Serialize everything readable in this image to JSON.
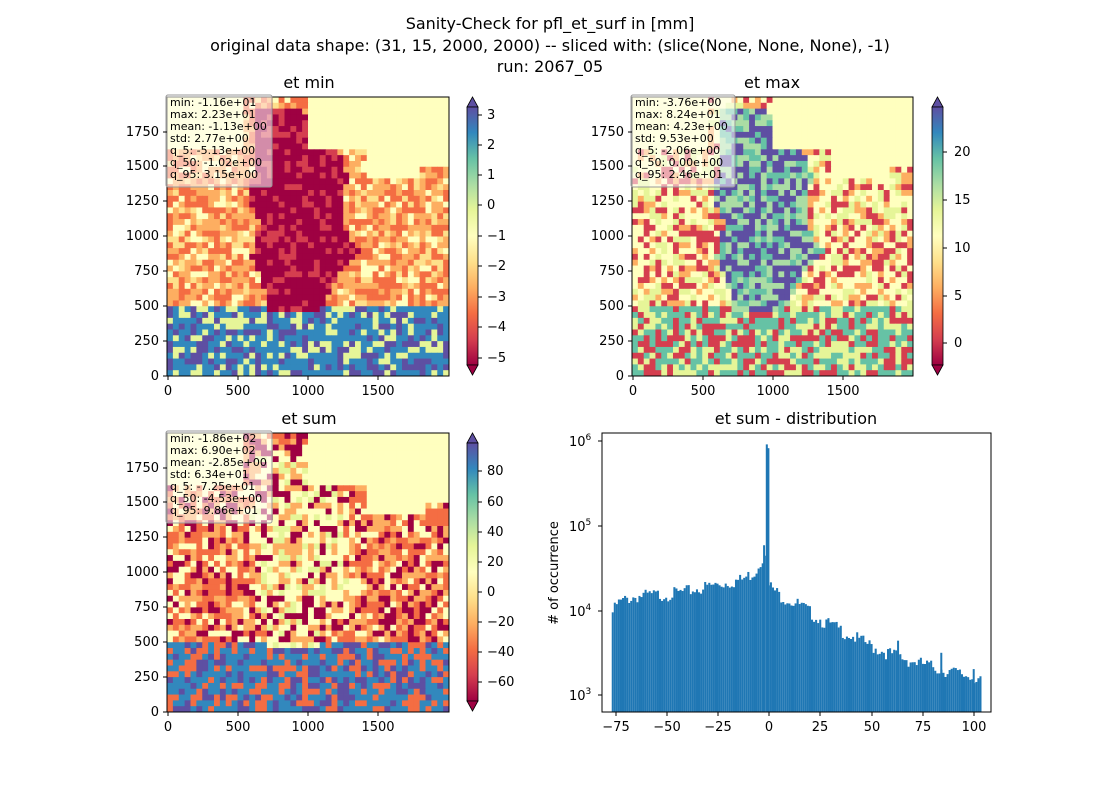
{
  "figure": {
    "title_lines": [
      "Sanity-Check for pfl_et_surf in [mm]",
      "original data shape: (31, 15, 2000, 2000) -- sliced with: (slice(None, None, None), -1)",
      "run: 2067_05"
    ]
  },
  "chart_data": [
    {
      "type": "heatmap",
      "title": "et min",
      "colormap": "Spectral",
      "colors_low_to_high": [
        "#9e0142",
        "#d53e4f",
        "#f46d43",
        "#fdae61",
        "#fee08b",
        "#ffffbf",
        "#e6f598",
        "#abdda4",
        "#66c2a5",
        "#3288bd",
        "#5e4fa2"
      ],
      "x_ticks": [
        "0",
        "500",
        "1000",
        "1500"
      ],
      "y_ticks": [
        "0",
        "250",
        "500",
        "750",
        "1000",
        "1250",
        "1500",
        "1750"
      ],
      "xlim": [
        0,
        2000
      ],
      "ylim": [
        0,
        2000
      ],
      "colorbar": {
        "ticks": [
          "3",
          "2",
          "1",
          "0",
          "−1",
          "−2",
          "−3",
          "−4",
          "−5"
        ],
        "range": [
          -5.13,
          3.15
        ],
        "extend": "both"
      },
      "stats": [
        "min: -1.16e+01",
        "max: 2.23e+01",
        "mean: -1.13e+00",
        "std: 2.77e+00",
        "q_5: -5.13e+00",
        "q_50: -1.02e+00",
        "q_95: 3.15e+00"
      ]
    },
    {
      "type": "heatmap",
      "title": "et max",
      "colormap": "Spectral",
      "colors_low_to_high": [
        "#9e0142",
        "#d53e4f",
        "#f46d43",
        "#fdae61",
        "#fee08b",
        "#ffffbf",
        "#e6f598",
        "#abdda4",
        "#66c2a5",
        "#3288bd",
        "#5e4fa2"
      ],
      "x_ticks": [
        "0",
        "500",
        "1000",
        "1500"
      ],
      "y_ticks": [
        "0",
        "250",
        "500",
        "750",
        "1000",
        "1250",
        "1500",
        "1750"
      ],
      "xlim": [
        0,
        2000
      ],
      "ylim": [
        0,
        2000
      ],
      "colorbar": {
        "ticks": [
          "20",
          "15",
          "10",
          "5",
          "0"
        ],
        "range": [
          -2.06,
          24.6
        ],
        "extend": "both"
      },
      "stats": [
        "min: -3.76e+00",
        "max: 8.24e+01",
        "mean: 4.23e+00",
        "std: 9.53e+00",
        "q_5: -2.06e+00",
        "q_50: 0.00e+00",
        "q_95: 2.46e+01"
      ]
    },
    {
      "type": "heatmap",
      "title": "et sum",
      "colormap": "Spectral",
      "colors_low_to_high": [
        "#9e0142",
        "#d53e4f",
        "#f46d43",
        "#fdae61",
        "#fee08b",
        "#ffffbf",
        "#e6f598",
        "#abdda4",
        "#66c2a5",
        "#3288bd",
        "#5e4fa2"
      ],
      "x_ticks": [
        "0",
        "500",
        "1000",
        "1500"
      ],
      "y_ticks": [
        "0",
        "250",
        "500",
        "750",
        "1000",
        "1250",
        "1500",
        "1750"
      ],
      "xlim": [
        0,
        2000
      ],
      "ylim": [
        0,
        2000
      ],
      "colorbar": {
        "ticks": [
          "80",
          "60",
          "40",
          "20",
          "0",
          "−20",
          "−40",
          "−60"
        ],
        "range": [
          -72.5,
          98.6
        ],
        "extend": "both"
      },
      "stats": [
        "min: -1.86e+02",
        "max: 6.90e+02",
        "mean: -2.85e+00",
        "std: 6.34e+01",
        "q_5: -7.25e+01",
        "q_50: -4.53e+00",
        "q_95: 9.86e+01"
      ]
    },
    {
      "type": "bar",
      "title": "et sum - distribution",
      "ylabel": "# of occurrence",
      "yscale": "log",
      "ylim": [
        700,
        1200000
      ],
      "xlim": [
        -77,
        103
      ],
      "x_ticks": [
        "−75",
        "−50",
        "−25",
        "0",
        "25",
        "50",
        "75",
        "100"
      ],
      "y_ticks": [
        "10^3",
        "10^4",
        "10^5",
        "10^6"
      ],
      "bar_color": "#1f77b4",
      "bins": {
        "start": -72.5,
        "end": 98.6,
        "count": 180
      },
      "shape_points": [
        {
          "x": -72.5,
          "y": 9500
        },
        {
          "x": -70,
          "y": 12500
        },
        {
          "x": -65,
          "y": 14500
        },
        {
          "x": -60,
          "y": 15500
        },
        {
          "x": -50,
          "y": 16000
        },
        {
          "x": -40,
          "y": 17000
        },
        {
          "x": -30,
          "y": 19500
        },
        {
          "x": -20,
          "y": 22000
        },
        {
          "x": -12,
          "y": 24000
        },
        {
          "x": -6,
          "y": 30000
        },
        {
          "x": -3,
          "y": 42000
        },
        {
          "x": -1,
          "y": 60000
        },
        {
          "x": 0,
          "y": 800000
        },
        {
          "x": 1,
          "y": 20000
        },
        {
          "x": 5,
          "y": 16000
        },
        {
          "x": 15,
          "y": 12000
        },
        {
          "x": 25,
          "y": 8000
        },
        {
          "x": 35,
          "y": 6000
        },
        {
          "x": 50,
          "y": 3800
        },
        {
          "x": 65,
          "y": 2800
        },
        {
          "x": 80,
          "y": 2200
        },
        {
          "x": 90,
          "y": 1900
        },
        {
          "x": 98.6,
          "y": 1700
        }
      ],
      "spikes": [
        {
          "x": 0,
          "y": 800000
        },
        {
          "x": -2,
          "y": 60000
        },
        {
          "x": 60,
          "y": 4700
        },
        {
          "x": 80,
          "y": 3400
        },
        {
          "x": 95,
          "y": 2200
        }
      ]
    }
  ]
}
